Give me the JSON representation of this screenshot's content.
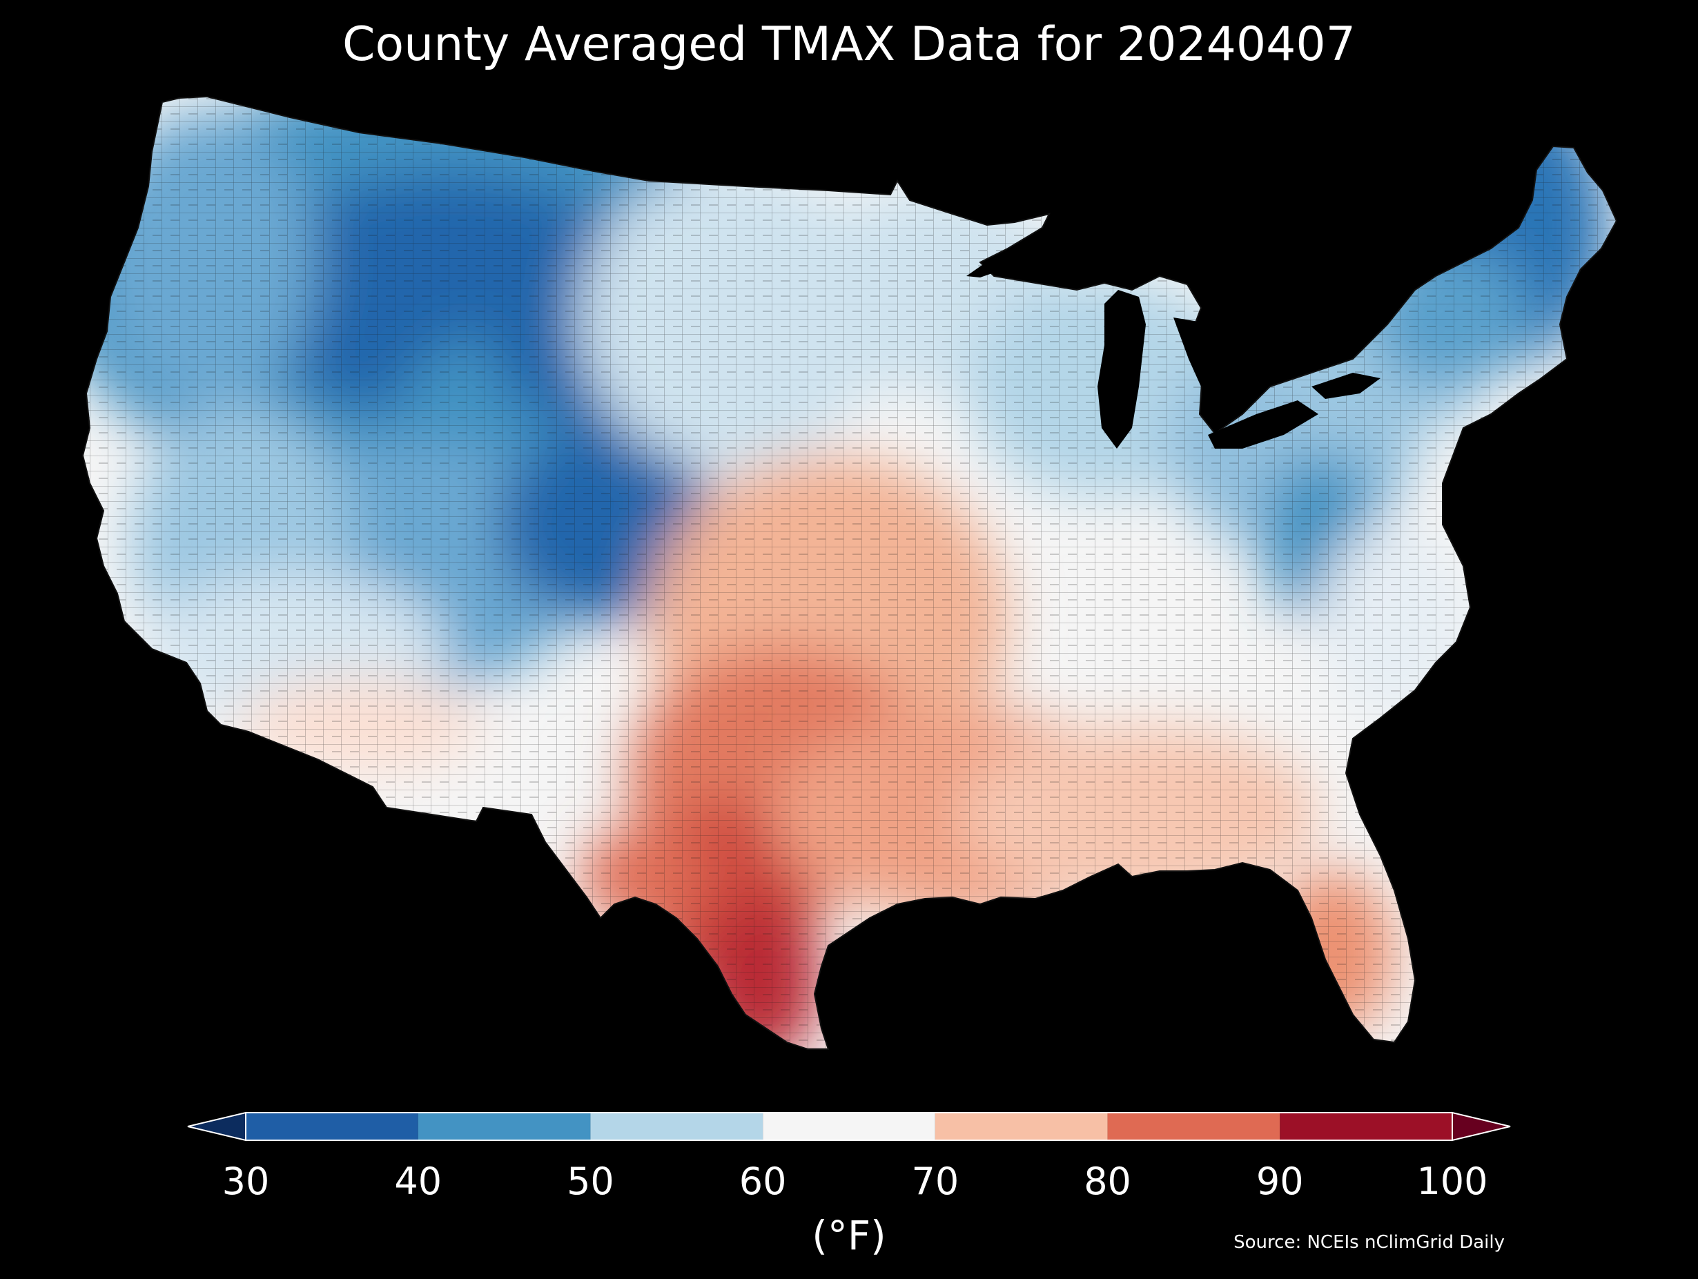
{
  "title": "County Averaged TMAX Data for 20240407",
  "colorbar": {
    "unit_label": "(°F)",
    "ticks": [
      "30",
      "40",
      "50",
      "60",
      "70",
      "80",
      "90",
      "100"
    ],
    "bins": [
      {
        "from": 30,
        "to": 40,
        "color": "#1f5ea6"
      },
      {
        "from": 40,
        "to": 50,
        "color": "#4393c3"
      },
      {
        "from": 50,
        "to": 60,
        "color": "#b4d6e8"
      },
      {
        "from": 60,
        "to": 70,
        "color": "#f5f5f5"
      },
      {
        "from": 70,
        "to": 80,
        "color": "#f7c0a6"
      },
      {
        "from": 80,
        "to": 90,
        "color": "#df6a53"
      },
      {
        "from": 90,
        "to": 100,
        "color": "#9c1027"
      }
    ],
    "under_color": "#0c2c5e",
    "over_color": "#67001f"
  },
  "source": "Source: NCEIs nClimGrid Daily"
}
